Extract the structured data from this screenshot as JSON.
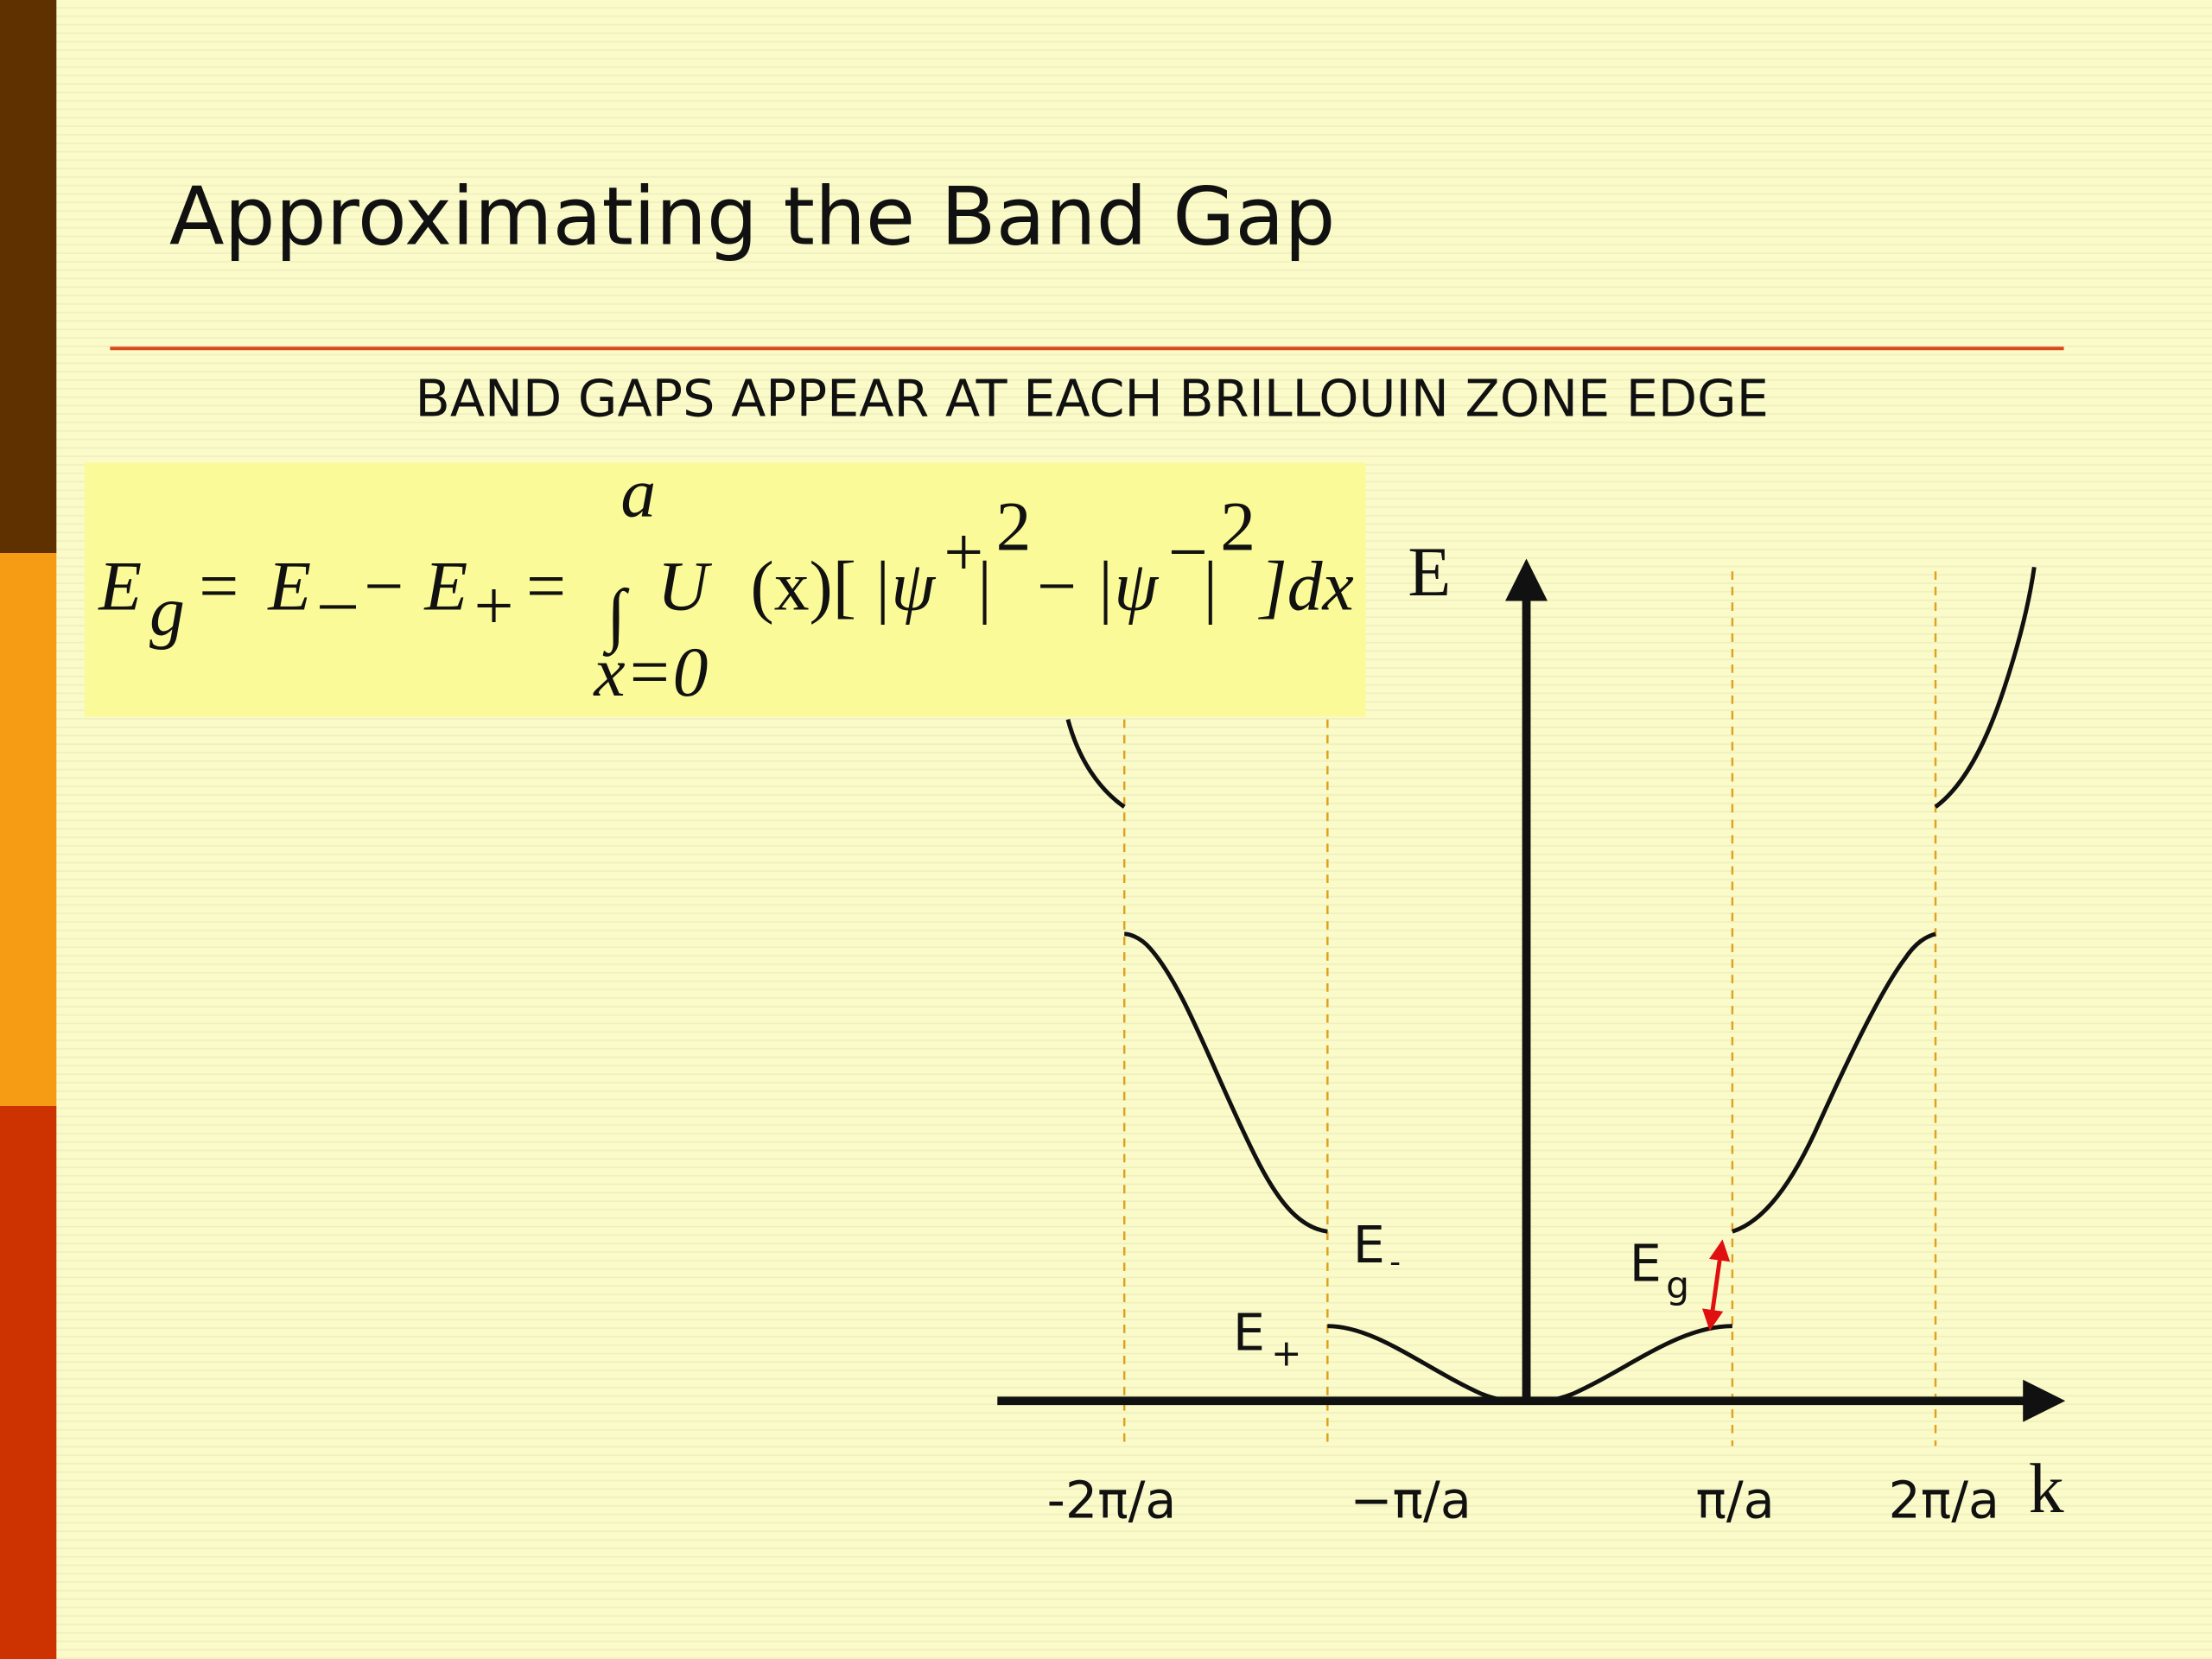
{
  "slide": {
    "title": "Approximating the Band Gap",
    "subtitle": "BAND GAPS APPEAR AT EACH BRILLOUIN ZONE EDGE",
    "equation": [
      "E",
      "g",
      "=",
      "E",
      "–",
      "−",
      "E",
      "+",
      "=",
      "∫",
      "a",
      "x=0",
      "U",
      "(x)[",
      "|ψ",
      "+",
      "|",
      "2",
      "−",
      "|ψ",
      "−",
      "|",
      "2",
      "]dx"
    ],
    "diagram": {
      "y_axis_label": "E",
      "x_axis_label": "k",
      "ticks": [
        "-2π/a",
        "−π/a",
        "π/a",
        "2π/a"
      ],
      "e_minus": [
        "E",
        "-"
      ],
      "e_plus": [
        "E",
        "+"
      ],
      "e_gap": [
        "E",
        "g"
      ]
    }
  }
}
